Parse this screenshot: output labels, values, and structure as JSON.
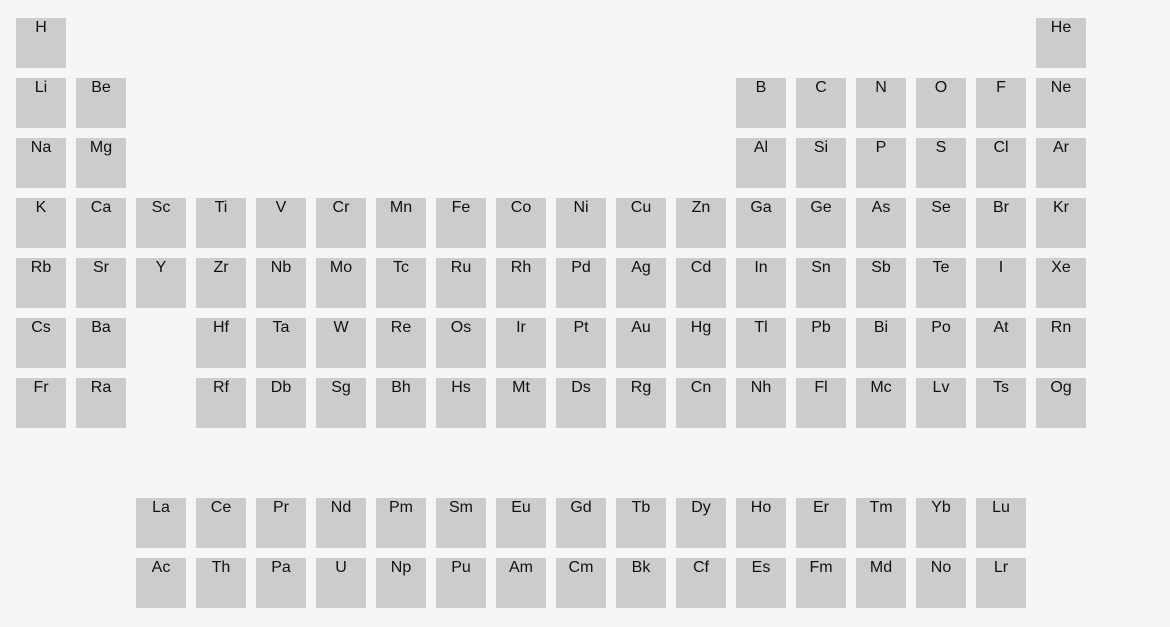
{
  "periods": [
    [
      "H",
      null,
      null,
      null,
      null,
      null,
      null,
      null,
      null,
      null,
      null,
      null,
      null,
      null,
      null,
      null,
      null,
      "He"
    ],
    [
      "Li",
      "Be",
      null,
      null,
      null,
      null,
      null,
      null,
      null,
      null,
      null,
      null,
      "B",
      "C",
      "N",
      "O",
      "F",
      "Ne"
    ],
    [
      "Na",
      "Mg",
      null,
      null,
      null,
      null,
      null,
      null,
      null,
      null,
      null,
      null,
      "Al",
      "Si",
      "P",
      "S",
      "Cl",
      "Ar"
    ],
    [
      "K",
      "Ca",
      "Sc",
      "Ti",
      "V",
      "Cr",
      "Mn",
      "Fe",
      "Co",
      "Ni",
      "Cu",
      "Zn",
      "Ga",
      "Ge",
      "As",
      "Se",
      "Br",
      "Kr"
    ],
    [
      "Rb",
      "Sr",
      "Y",
      "Zr",
      "Nb",
      "Mo",
      "Tc",
      "Ru",
      "Rh",
      "Pd",
      "Ag",
      "Cd",
      "In",
      "Sn",
      "Sb",
      "Te",
      "I",
      "Xe"
    ],
    [
      "Cs",
      "Ba",
      null,
      "Hf",
      "Ta",
      "W",
      "Re",
      "Os",
      "Ir",
      "Pt",
      "Au",
      "Hg",
      "Tl",
      "Pb",
      "Bi",
      "Po",
      "At",
      "Rn"
    ],
    [
      "Fr",
      "Ra",
      null,
      "Rf",
      "Db",
      "Sg",
      "Bh",
      "Hs",
      "Mt",
      "Ds",
      "Rg",
      "Cn",
      "Nh",
      "Fl",
      "Mc",
      "Lv",
      "Ts",
      "Og"
    ]
  ],
  "lanthanides": [
    "La",
    "Ce",
    "Pr",
    "Nd",
    "Pm",
    "Sm",
    "Eu",
    "Gd",
    "Tb",
    "Dy",
    "Ho",
    "Er",
    "Tm",
    "Yb",
    "Lu"
  ],
  "actinides": [
    "Ac",
    "Th",
    "Pa",
    "U",
    "Np",
    "Pu",
    "Am",
    "Cm",
    "Bk",
    "Cf",
    "Es",
    "Fm",
    "Md",
    "No",
    "Lr"
  ],
  "colors": {
    "background": "#f5f5f5",
    "cell": "#cccccc",
    "text": "#111111"
  }
}
